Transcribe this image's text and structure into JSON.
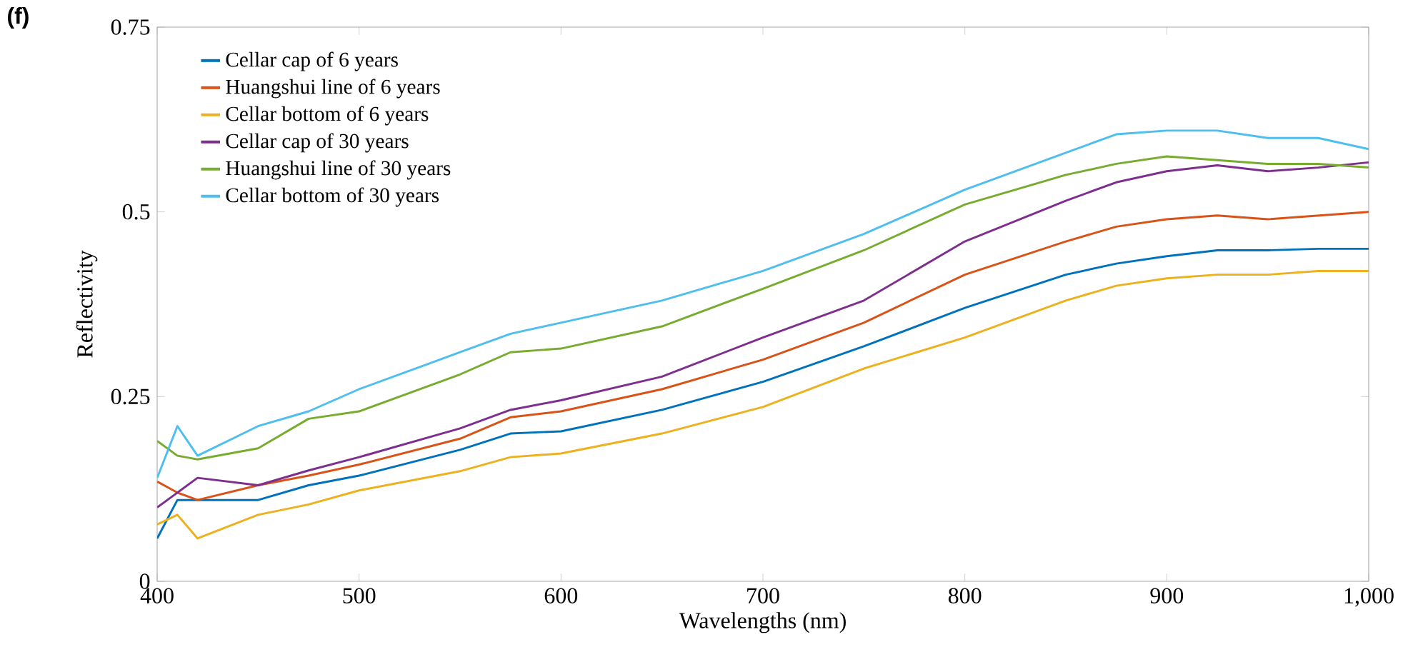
{
  "chart_data": {
    "type": "line",
    "xlabel": "Wavelengths (nm)",
    "ylabel": "Reflectivity",
    "annotations": [
      "(f)"
    ],
    "xlim": [
      400,
      1000
    ],
    "ylim": [
      0,
      0.75
    ],
    "xticks": [
      400,
      500,
      600,
      700,
      800,
      900,
      {
        "value": 1000,
        "label": "1,000"
      }
    ],
    "yticks": [
      0,
      0.25,
      0.5,
      0.75
    ],
    "legend": "top left",
    "line_style": "solid",
    "x": [
      400,
      410,
      420,
      450,
      475,
      500,
      550,
      575,
      600,
      650,
      700,
      750,
      800,
      850,
      875,
      900,
      925,
      950,
      975,
      1000
    ],
    "series": [
      {
        "name": "Cellar cap of 6 years",
        "color": "#0072bd",
        "values": [
          0.058,
          0.11,
          0.11,
          0.11,
          0.13,
          0.143,
          0.178,
          0.2,
          0.203,
          0.232,
          0.27,
          0.318,
          0.37,
          0.415,
          0.43,
          0.44,
          0.448,
          0.448,
          0.45,
          0.45
        ]
      },
      {
        "name": "Huangshui line of 6 years",
        "color": "#d95319",
        "values": [
          0.135,
          0.12,
          0.11,
          0.13,
          0.143,
          0.158,
          0.193,
          0.222,
          0.23,
          0.26,
          0.3,
          0.35,
          0.415,
          0.46,
          0.48,
          0.49,
          0.495,
          0.49,
          0.495,
          0.5
        ]
      },
      {
        "name": "Cellar bottom of 6 years",
        "color": "#edb120",
        "values": [
          0.077,
          0.09,
          0.058,
          0.09,
          0.104,
          0.123,
          0.149,
          0.168,
          0.173,
          0.2,
          0.236,
          0.288,
          0.33,
          0.38,
          0.4,
          0.41,
          0.415,
          0.415,
          0.42,
          0.42
        ]
      },
      {
        "name": "Cellar cap of 30 years",
        "color": "#7e2f8e",
        "values": [
          0.1,
          0.12,
          0.14,
          0.13,
          0.15,
          0.168,
          0.207,
          0.232,
          0.245,
          0.277,
          0.33,
          0.38,
          0.46,
          0.515,
          0.54,
          0.555,
          0.563,
          0.555,
          0.56,
          0.567
        ]
      },
      {
        "name": "Huangshui line of 30 years",
        "color": "#77ac30",
        "values": [
          0.19,
          0.17,
          0.165,
          0.18,
          0.22,
          0.23,
          0.28,
          0.31,
          0.315,
          0.345,
          0.396,
          0.448,
          0.51,
          0.55,
          0.565,
          0.575,
          0.57,
          0.565,
          0.565,
          0.56
        ]
      },
      {
        "name": "Cellar bottom of 30 years",
        "color": "#4dbeee",
        "values": [
          0.14,
          0.21,
          0.17,
          0.21,
          0.23,
          0.26,
          0.31,
          0.335,
          0.35,
          0.38,
          0.42,
          0.47,
          0.53,
          0.58,
          0.605,
          0.61,
          0.61,
          0.6,
          0.6,
          0.585
        ]
      }
    ]
  }
}
